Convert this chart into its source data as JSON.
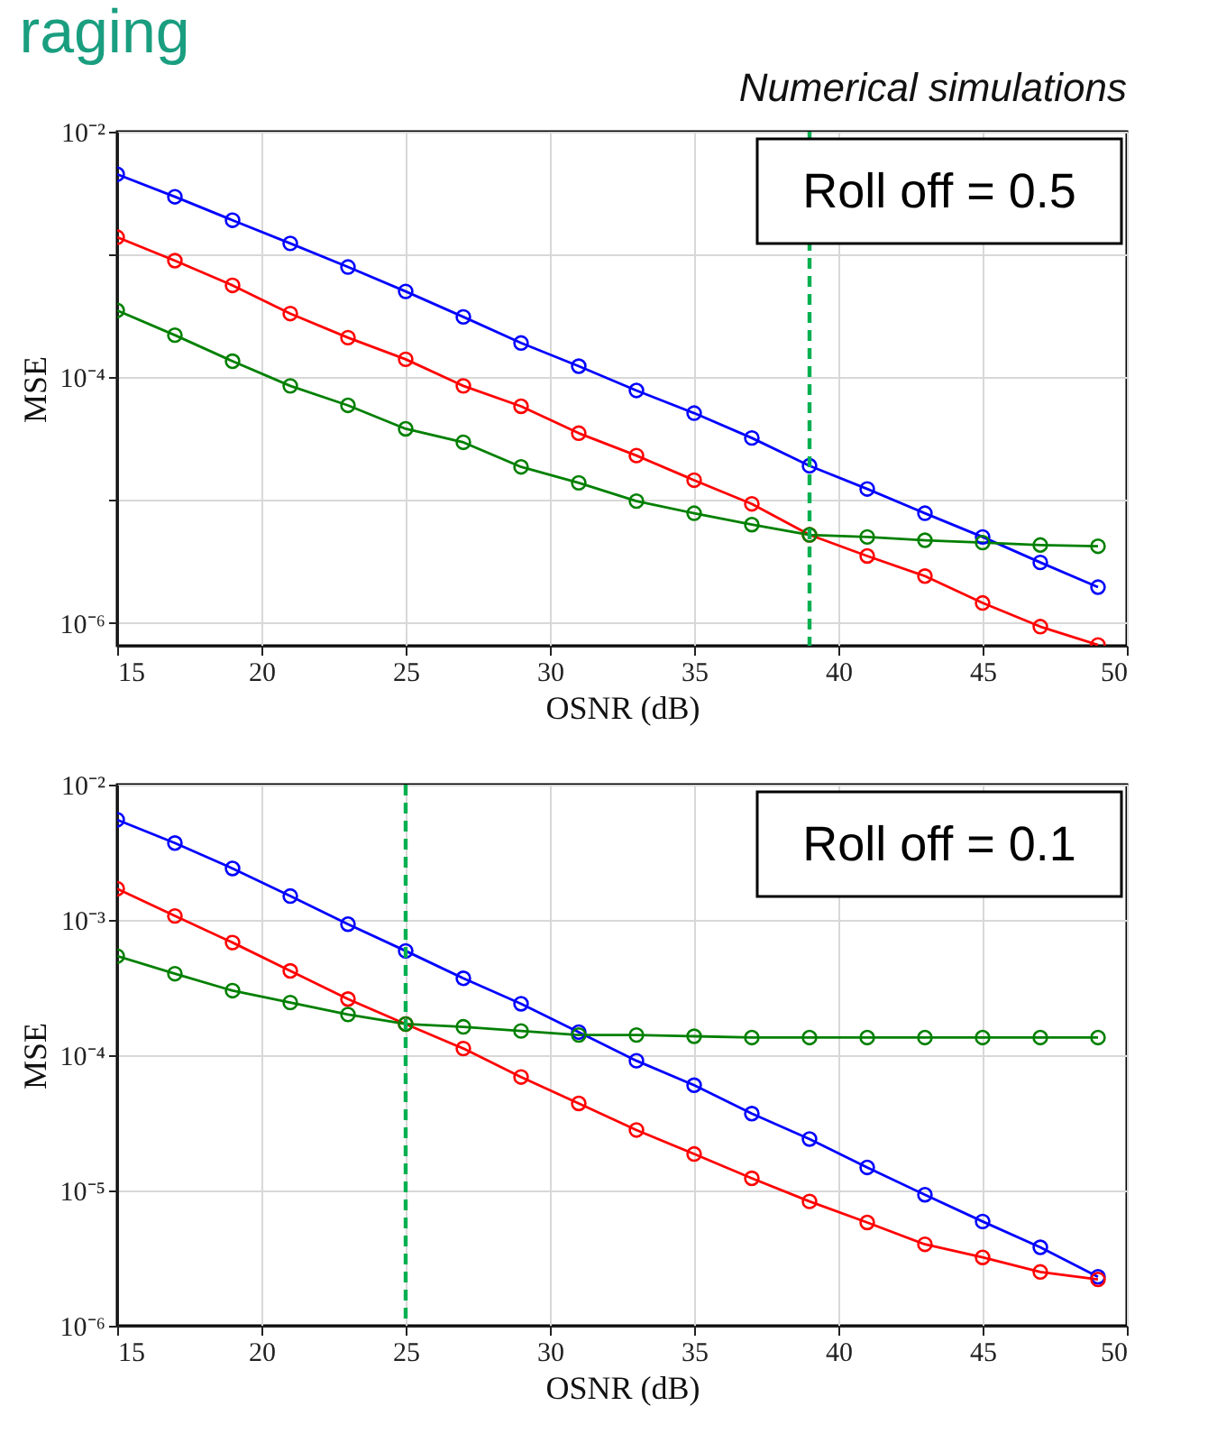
{
  "chart_data": [
    {
      "type": "line",
      "title": "raging",
      "xlabel": "OSNR (dB)",
      "ylabel": "MSE",
      "log": "y",
      "grid": true,
      "marker": "circle",
      "line_style": "solid",
      "legend": false,
      "annotations": [
        "Numerical simulations",
        "Roll off = 0.5"
      ],
      "x": [
        15,
        17,
        19,
        21,
        23,
        25,
        27,
        29,
        31,
        33,
        35,
        37,
        39,
        41,
        43,
        45,
        47,
        49
      ],
      "xlim": [
        15,
        50
      ],
      "xticks": [
        15,
        20,
        25,
        30,
        35,
        40,
        45,
        50
      ],
      "ylim": [
        6.5e-07,
        0.01
      ],
      "yticks": [
        {
          "value": 0.01,
          "label": "10⁻²"
        },
        {
          "value": 0.001,
          "label": null
        },
        {
          "value": 0.0001,
          "label": "10⁻⁴"
        },
        {
          "value": 1e-05,
          "label": null
        },
        {
          "value": 1e-06,
          "label": "10⁻⁶"
        }
      ],
      "ref_lines": [
        {
          "axis": "x",
          "value": 39,
          "color": "#00b050",
          "line_style": "dashed"
        }
      ],
      "series": [
        {
          "color": "#0000ff",
          "values": [
            0.0045,
            0.00295,
            0.0019,
            0.00123,
            0.00079,
            0.0005,
            0.00031,
            0.00019,
            0.000123,
            7.8e-05,
            5.1e-05,
            3.2e-05,
            1.9e-05,
            1.23e-05,
            7.8e-06,
            5e-06,
            3.1e-06,
            1.95e-06
          ]
        },
        {
          "color": "#ff0000",
          "values": [
            0.00138,
            0.00089,
            0.00056,
            0.00033,
            0.00021,
            0.00014,
            8.5e-05,
            5.8e-05,
            3.5e-05,
            2.3e-05,
            1.45e-05,
            9.3e-06,
            5.2e-06,
            3.5e-06,
            2.4e-06,
            1.45e-06,
            9.3e-07,
            6.6e-07
          ]
        },
        {
          "color": "#008000",
          "values": [
            0.00035,
            0.00022,
            0.000135,
            8.5e-05,
            5.9e-05,
            3.8e-05,
            2.95e-05,
            1.86e-05,
            1.38e-05,
            9.8e-06,
            7.8e-06,
            6.3e-06,
            5.2e-06,
            5e-06,
            4.7e-06,
            4.5e-06,
            4.3e-06,
            4.2e-06
          ]
        }
      ]
    },
    {
      "type": "line",
      "xlabel": "OSNR (dB)",
      "ylabel": "MSE",
      "log": "y",
      "grid": true,
      "marker": "circle",
      "line_style": "solid",
      "legend": false,
      "annotations": [
        "Roll off = 0.1"
      ],
      "x": [
        15,
        17,
        19,
        21,
        23,
        25,
        27,
        29,
        31,
        33,
        35,
        37,
        39,
        41,
        43,
        45,
        47,
        49
      ],
      "xlim": [
        15,
        50
      ],
      "xticks": [
        15,
        20,
        25,
        30,
        35,
        40,
        45,
        50
      ],
      "ylim": [
        1e-06,
        0.01
      ],
      "yticks": [
        {
          "value": 0.01,
          "label": "10⁻²"
        },
        {
          "value": 0.001,
          "label": "10⁻³"
        },
        {
          "value": 0.0001,
          "label": "10⁻⁴"
        },
        {
          "value": 1e-05,
          "label": "10⁻⁵"
        },
        {
          "value": 1e-06,
          "label": "10⁻⁶"
        }
      ],
      "ref_lines": [
        {
          "axis": "x",
          "value": 25,
          "color": "#00b050",
          "line_style": "dashed"
        }
      ],
      "series": [
        {
          "color": "#0000ff",
          "values": [
            0.0055,
            0.0037,
            0.0024,
            0.0015,
            0.00093,
            0.00059,
            0.00037,
            0.00024,
            0.000148,
            9.1e-05,
            6e-05,
            3.7e-05,
            2.4e-05,
            1.48e-05,
            9.3e-06,
            5.9e-06,
            3.8e-06,
            2.3e-06
          ]
        },
        {
          "color": "#ff0000",
          "values": [
            0.0017,
            0.00107,
            0.00068,
            0.00042,
            0.00026,
            0.00017,
            0.000112,
            6.9e-05,
            4.4e-05,
            2.8e-05,
            1.86e-05,
            1.23e-05,
            8.3e-06,
            5.8e-06,
            4e-06,
            3.2e-06,
            2.5e-06,
            2.2e-06
          ]
        },
        {
          "color": "#008000",
          "values": [
            0.00054,
            0.0004,
            0.0003,
            0.000245,
            0.0002,
            0.00017,
            0.000162,
            0.000151,
            0.000141,
            0.000141,
            0.000138,
            0.000135,
            0.000135,
            0.000135,
            0.000135,
            0.000135,
            0.000135,
            0.000135
          ]
        }
      ]
    }
  ]
}
